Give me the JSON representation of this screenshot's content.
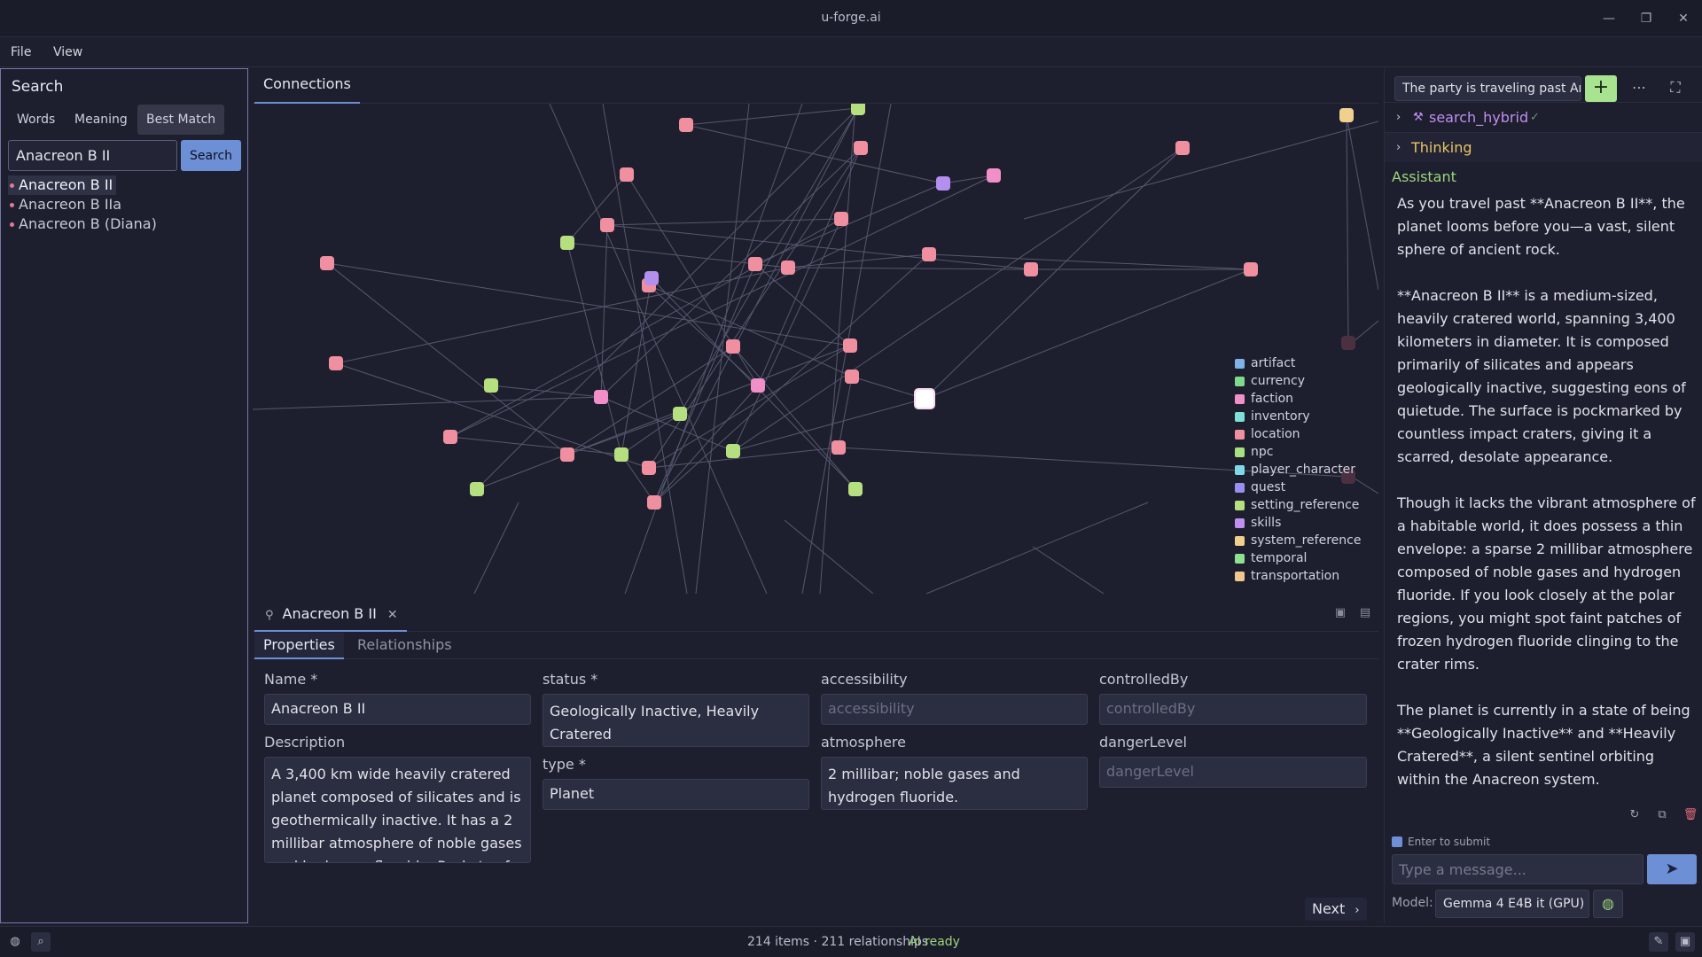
{
  "window": {
    "title": "u-forge.ai"
  },
  "menu": {
    "file": "File",
    "view": "View"
  },
  "search_panel": {
    "title": "Search",
    "tabs": [
      "Words",
      "Meaning",
      "Best Match"
    ],
    "active_tab": "Best Match",
    "input_value": "Anacreon B II",
    "button_label": "Search",
    "results": [
      "Anacreon B II",
      "Anacreon B IIa",
      "Anacreon B (Diana)"
    ]
  },
  "graph_panel": {
    "tab_label": "Connections",
    "legend": [
      {
        "label": "artifact",
        "color": "#7fb3e8"
      },
      {
        "label": "currency",
        "color": "#7fd98c"
      },
      {
        "label": "faction",
        "color": "#f08fc8"
      },
      {
        "label": "inventory",
        "color": "#7fe0d8"
      },
      {
        "label": "location",
        "color": "#f08fa0"
      },
      {
        "label": "npc",
        "color": "#a6e07f"
      },
      {
        "label": "player_character",
        "color": "#7fd8e8"
      },
      {
        "label": "quest",
        "color": "#9a8ff0"
      },
      {
        "label": "setting_reference",
        "color": "#b6e07f"
      },
      {
        "label": "skills",
        "color": "#c08ff0"
      },
      {
        "label": "system_reference",
        "color": "#f0d08f"
      },
      {
        "label": "temporal",
        "color": "#8fe08f"
      },
      {
        "label": "transportation",
        "color": "#f0c88f"
      }
    ]
  },
  "detail_panel": {
    "tab_label": "Anacreon B II",
    "subtabs": [
      "Properties",
      "Relationships"
    ],
    "fields": {
      "name": {
        "label": "Name *",
        "value": "Anacreon B II"
      },
      "status": {
        "label": "status *",
        "value": "Geologically Inactive, Heavily Cratered"
      },
      "accessibility": {
        "label": "accessibility",
        "placeholder": "accessibility"
      },
      "controlledBy": {
        "label": "controlledBy",
        "placeholder": "controlledBy"
      },
      "description": {
        "label": "Description",
        "value": "A 3,400 km wide heavily cratered planet composed of silicates and is geothermically inactive. It has a 2 millibar atmosphere of noble gases and hydrogen fluoride. Pockets of"
      },
      "type": {
        "label": "type *",
        "value": "Planet"
      },
      "atmosphere": {
        "label": "atmosphere",
        "value": "2 millibar; noble gases and hydrogen fluoride."
      },
      "dangerLevel": {
        "label": "dangerLevel",
        "placeholder": "dangerLevel"
      }
    },
    "next_label": "Next"
  },
  "chat_panel": {
    "conversation_title": "The party is traveling past Anacreon B II",
    "tool_call": "search_hybrid",
    "thinking_label": "Thinking",
    "assistant_label": "Assistant",
    "messages": [
      "As you travel past **Anacreon B II**, the planet looms before you—a vast, silent sphere of ancient rock.",
      "**Anacreon B II** is a medium-sized, heavily cratered world, spanning 3,400 kilometers in diameter. It is composed primarily of silicates and appears geologically inactive, suggesting eons of quietude. The surface is pockmarked by countless impact craters, giving it a scarred, desolate appearance.",
      "Though it lacks the vibrant atmosphere of a habitable world, it does possess a thin envelope: a sparse 2 millibar atmosphere composed of noble gases and hydrogen fluoride. If you look closely at the polar regions, you might spot faint patches of frozen hydrogen fluoride clinging to the crater rims.",
      "The planet is currently in a state of being **Geologically Inactive** and **Heavily Cratered**, a silent sentinel orbiting within the Anacreon system."
    ],
    "enter_to_submit": "Enter to submit",
    "message_placeholder": "Type a message...",
    "model_label": "Model:",
    "model_value": "Gemma 4 E4B it (GPU)"
  },
  "status_bar": {
    "counts": "214 items · 211 relationships",
    "ai_status": "AI ready"
  }
}
